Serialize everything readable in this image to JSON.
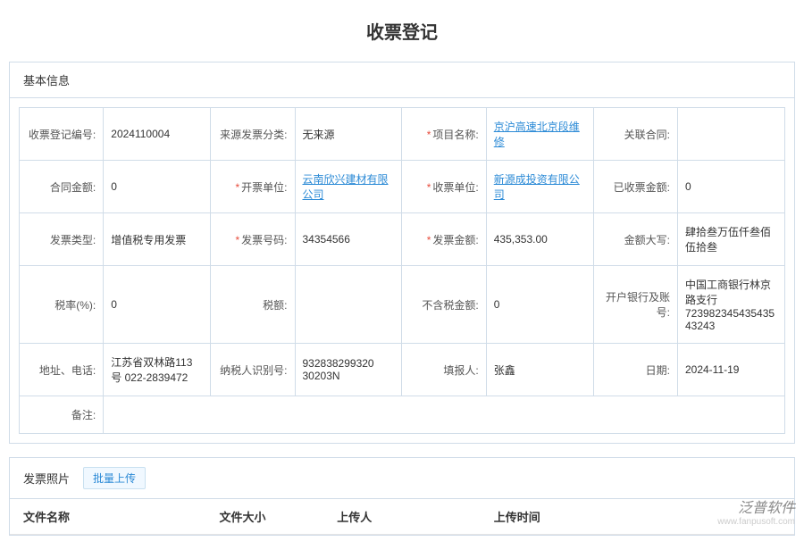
{
  "page_title": "收票登记",
  "basic_info_section": "基本信息",
  "rows": [
    [
      {
        "label": "收票登记编号:",
        "req": false,
        "value": "2024110004",
        "link": false
      },
      {
        "label": "来源发票分类:",
        "req": false,
        "value": "无来源",
        "link": false
      },
      {
        "label": "项目名称:",
        "req": true,
        "value": "京沪高速北京段维修",
        "link": true
      },
      {
        "label": "关联合同:",
        "req": false,
        "value": "",
        "link": false
      }
    ],
    [
      {
        "label": "合同金额:",
        "req": false,
        "value": "0",
        "link": false
      },
      {
        "label": "开票单位:",
        "req": true,
        "value": "云南欣兴建材有限公司",
        "link": true
      },
      {
        "label": "收票单位:",
        "req": true,
        "value": "新源成投资有限公司",
        "link": true
      },
      {
        "label": "已收票金额:",
        "req": false,
        "value": "0",
        "link": false
      }
    ],
    [
      {
        "label": "发票类型:",
        "req": false,
        "value": "增值税专用发票",
        "link": false
      },
      {
        "label": "发票号码:",
        "req": true,
        "value": "34354566",
        "link": false
      },
      {
        "label": "发票金额:",
        "req": true,
        "value": "435,353.00",
        "link": false
      },
      {
        "label": "金额大写:",
        "req": false,
        "value": "肆拾叁万伍仟叁佰伍拾叁",
        "link": false
      }
    ],
    [
      {
        "label": "税率(%):",
        "req": false,
        "value": "0",
        "link": false
      },
      {
        "label": "税额:",
        "req": false,
        "value": "",
        "link": false
      },
      {
        "label": "不含税金额:",
        "req": false,
        "value": "0",
        "link": false
      },
      {
        "label": "开户银行及账号:",
        "req": false,
        "value": "中国工商银行林京路支行 723982345435435432​43",
        "link": false
      }
    ],
    [
      {
        "label": "地址、电话:",
        "req": false,
        "value": "江苏省双林路113号 022-2839472",
        "link": false
      },
      {
        "label": "纳税人识别号:",
        "req": false,
        "value": "932838299320​30203N",
        "link": false
      },
      {
        "label": "填报人:",
        "req": false,
        "value": "张鑫",
        "link": false
      },
      {
        "label": "日期:",
        "req": false,
        "value": "2024-11-19",
        "link": false
      }
    ]
  ],
  "remark_label": "备注:",
  "photo_section": "发票照片",
  "batch_upload": "批量上传",
  "file_headers": {
    "name": "文件名称",
    "size": "文件大小",
    "uploader": "上传人",
    "time": "上传时间"
  },
  "watermark": {
    "logo": "泛普软件",
    "url": "www.fanpusoft.com"
  }
}
